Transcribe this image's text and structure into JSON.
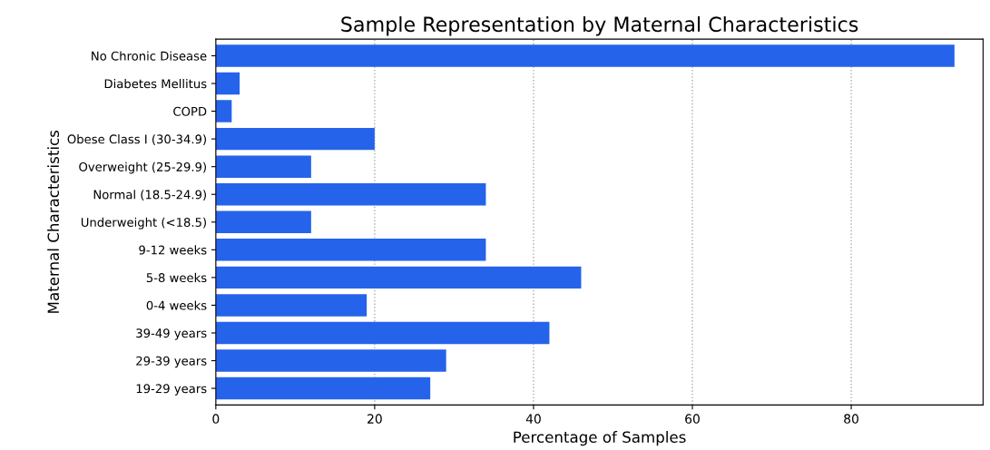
{
  "chart_data": {
    "type": "bar",
    "orientation": "horizontal",
    "title": "Sample Representation by Maternal Characteristics",
    "xlabel": "Percentage of Samples",
    "ylabel": "Maternal Characteristics",
    "categories": [
      "No Chronic Disease",
      "Diabetes Mellitus",
      "COPD",
      "Obese Class I (30-34.9)",
      "Overweight (25-29.9)",
      "Normal (18.5-24.9)",
      "Underweight (<18.5)",
      "9-12 weeks",
      "5-8 weeks",
      "0-4 weeks",
      "39-49 years",
      "29-39 years",
      "19-29 years"
    ],
    "values": [
      93,
      3,
      2,
      20,
      12,
      34,
      12,
      34,
      46,
      19,
      42,
      29,
      27
    ],
    "color": "#2563eb",
    "xlim": [
      0,
      96.6
    ],
    "xticks": [
      0,
      20,
      40,
      60,
      80
    ],
    "grid": "x"
  }
}
